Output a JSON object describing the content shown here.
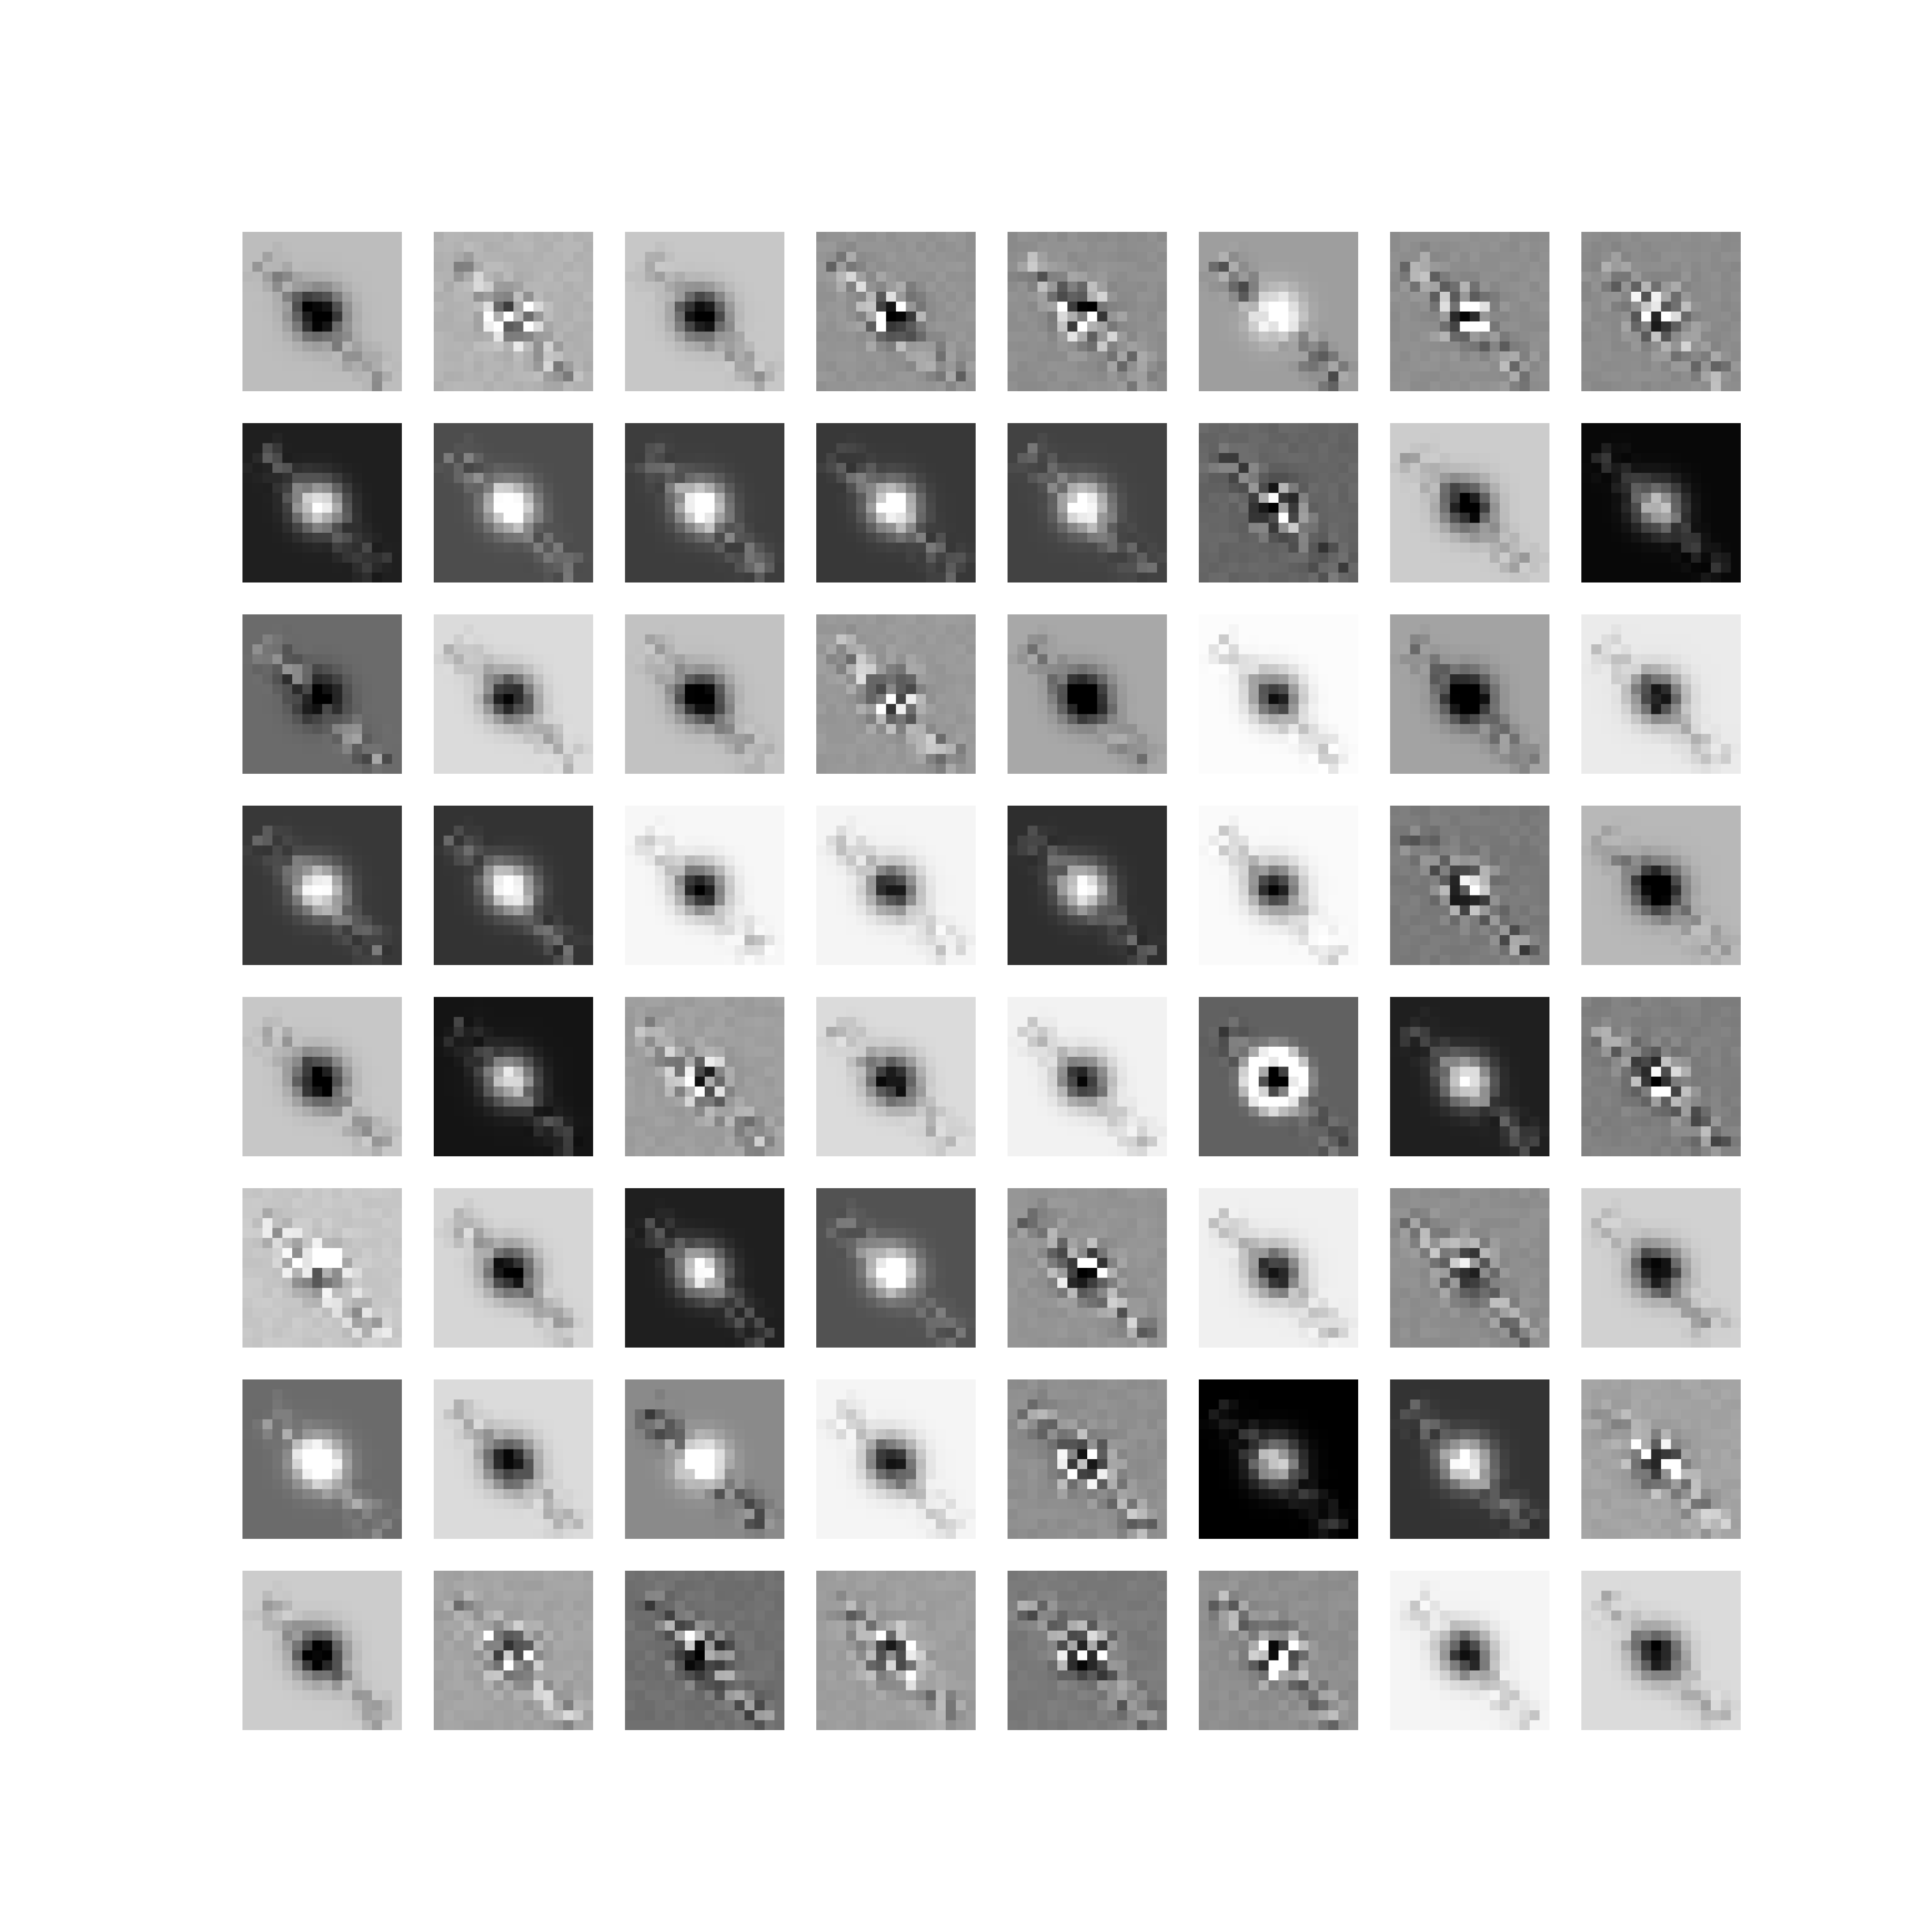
{
  "grid": {
    "rows": 8,
    "cols": 8,
    "pixels_per_tile": 16,
    "tiles": [
      {
        "bg": 0.74,
        "contrast": 0.85,
        "seed": 11,
        "variant": "dark"
      },
      {
        "bg": 0.7,
        "contrast": 0.8,
        "seed": 12,
        "variant": "mixed"
      },
      {
        "bg": 0.78,
        "contrast": 0.85,
        "seed": 13,
        "variant": "dark"
      },
      {
        "bg": 0.58,
        "contrast": 0.9,
        "seed": 14,
        "variant": "mixed"
      },
      {
        "bg": 0.56,
        "contrast": 0.9,
        "seed": 15,
        "variant": "mixed"
      },
      {
        "bg": 0.62,
        "contrast": 0.85,
        "seed": 16,
        "variant": "bright"
      },
      {
        "bg": 0.56,
        "contrast": 0.9,
        "seed": 17,
        "variant": "mixed"
      },
      {
        "bg": 0.55,
        "contrast": 0.9,
        "seed": 18,
        "variant": "mixed"
      },
      {
        "bg": 0.12,
        "contrast": 0.9,
        "seed": 21,
        "variant": "bright"
      },
      {
        "bg": 0.3,
        "contrast": 0.85,
        "seed": 22,
        "variant": "bright"
      },
      {
        "bg": 0.24,
        "contrast": 0.9,
        "seed": 23,
        "variant": "bright"
      },
      {
        "bg": 0.22,
        "contrast": 0.9,
        "seed": 24,
        "variant": "bright"
      },
      {
        "bg": 0.26,
        "contrast": 0.85,
        "seed": 25,
        "variant": "bright"
      },
      {
        "bg": 0.4,
        "contrast": 0.85,
        "seed": 26,
        "variant": "mixed"
      },
      {
        "bg": 0.8,
        "contrast": 0.85,
        "seed": 27,
        "variant": "dark"
      },
      {
        "bg": 0.03,
        "contrast": 0.7,
        "seed": 28,
        "variant": "bright"
      },
      {
        "bg": 0.42,
        "contrast": 0.85,
        "seed": 31,
        "variant": "dark"
      },
      {
        "bg": 0.86,
        "contrast": 0.8,
        "seed": 32,
        "variant": "dark"
      },
      {
        "bg": 0.76,
        "contrast": 0.85,
        "seed": 33,
        "variant": "dark"
      },
      {
        "bg": 0.6,
        "contrast": 0.85,
        "seed": 34,
        "variant": "mixed"
      },
      {
        "bg": 0.66,
        "contrast": 0.85,
        "seed": 35,
        "variant": "dark"
      },
      {
        "bg": 0.99,
        "contrast": 0.8,
        "seed": 36,
        "variant": "dark"
      },
      {
        "bg": 0.64,
        "contrast": 0.9,
        "seed": 37,
        "variant": "dark"
      },
      {
        "bg": 0.92,
        "contrast": 0.85,
        "seed": 38,
        "variant": "dark"
      },
      {
        "bg": 0.22,
        "contrast": 0.85,
        "seed": 41,
        "variant": "bright"
      },
      {
        "bg": 0.2,
        "contrast": 0.85,
        "seed": 42,
        "variant": "bright"
      },
      {
        "bg": 0.97,
        "contrast": 0.85,
        "seed": 43,
        "variant": "dark"
      },
      {
        "bg": 0.96,
        "contrast": 0.85,
        "seed": 44,
        "variant": "dark"
      },
      {
        "bg": 0.18,
        "contrast": 0.85,
        "seed": 45,
        "variant": "bright"
      },
      {
        "bg": 0.98,
        "contrast": 0.85,
        "seed": 46,
        "variant": "dark"
      },
      {
        "bg": 0.48,
        "contrast": 0.9,
        "seed": 47,
        "variant": "mixed"
      },
      {
        "bg": 0.72,
        "contrast": 0.9,
        "seed": 48,
        "variant": "dark"
      },
      {
        "bg": 0.78,
        "contrast": 0.85,
        "seed": 51,
        "variant": "dark"
      },
      {
        "bg": 0.08,
        "contrast": 0.8,
        "seed": 52,
        "variant": "bright"
      },
      {
        "bg": 0.62,
        "contrast": 0.85,
        "seed": 53,
        "variant": "mixed"
      },
      {
        "bg": 0.86,
        "contrast": 0.85,
        "seed": 54,
        "variant": "dark"
      },
      {
        "bg": 0.95,
        "contrast": 0.8,
        "seed": 55,
        "variant": "dark"
      },
      {
        "bg": 0.38,
        "contrast": 0.9,
        "seed": 56,
        "variant": "ring"
      },
      {
        "bg": 0.12,
        "contrast": 0.85,
        "seed": 57,
        "variant": "bright"
      },
      {
        "bg": 0.5,
        "contrast": 0.9,
        "seed": 58,
        "variant": "mixed"
      },
      {
        "bg": 0.78,
        "contrast": 0.85,
        "seed": 61,
        "variant": "mixed"
      },
      {
        "bg": 0.84,
        "contrast": 0.85,
        "seed": 62,
        "variant": "dark"
      },
      {
        "bg": 0.12,
        "contrast": 0.85,
        "seed": 63,
        "variant": "bright"
      },
      {
        "bg": 0.32,
        "contrast": 0.85,
        "seed": 64,
        "variant": "bright"
      },
      {
        "bg": 0.58,
        "contrast": 0.95,
        "seed": 65,
        "variant": "mixed"
      },
      {
        "bg": 0.94,
        "contrast": 0.8,
        "seed": 66,
        "variant": "dark"
      },
      {
        "bg": 0.56,
        "contrast": 0.85,
        "seed": 67,
        "variant": "mixed"
      },
      {
        "bg": 0.82,
        "contrast": 0.85,
        "seed": 68,
        "variant": "dark"
      },
      {
        "bg": 0.42,
        "contrast": 0.85,
        "seed": 71,
        "variant": "bright"
      },
      {
        "bg": 0.86,
        "contrast": 0.85,
        "seed": 72,
        "variant": "dark"
      },
      {
        "bg": 0.54,
        "contrast": 0.85,
        "seed": 73,
        "variant": "bright"
      },
      {
        "bg": 0.96,
        "contrast": 0.85,
        "seed": 74,
        "variant": "dark"
      },
      {
        "bg": 0.56,
        "contrast": 0.9,
        "seed": 75,
        "variant": "mixed"
      },
      {
        "bg": 0.0,
        "contrast": 0.8,
        "seed": 76,
        "variant": "bright"
      },
      {
        "bg": 0.2,
        "contrast": 0.85,
        "seed": 77,
        "variant": "bright"
      },
      {
        "bg": 0.64,
        "contrast": 0.9,
        "seed": 78,
        "variant": "mixed"
      },
      {
        "bg": 0.8,
        "contrast": 0.85,
        "seed": 81,
        "variant": "dark"
      },
      {
        "bg": 0.64,
        "contrast": 0.85,
        "seed": 82,
        "variant": "mixed"
      },
      {
        "bg": 0.44,
        "contrast": 0.9,
        "seed": 83,
        "variant": "mixed"
      },
      {
        "bg": 0.62,
        "contrast": 0.9,
        "seed": 84,
        "variant": "mixed"
      },
      {
        "bg": 0.48,
        "contrast": 0.9,
        "seed": 85,
        "variant": "mixed"
      },
      {
        "bg": 0.56,
        "contrast": 0.9,
        "seed": 86,
        "variant": "mixed"
      },
      {
        "bg": 0.96,
        "contrast": 0.85,
        "seed": 87,
        "variant": "dark"
      },
      {
        "bg": 0.86,
        "contrast": 0.85,
        "seed": 88,
        "variant": "dark"
      }
    ]
  }
}
